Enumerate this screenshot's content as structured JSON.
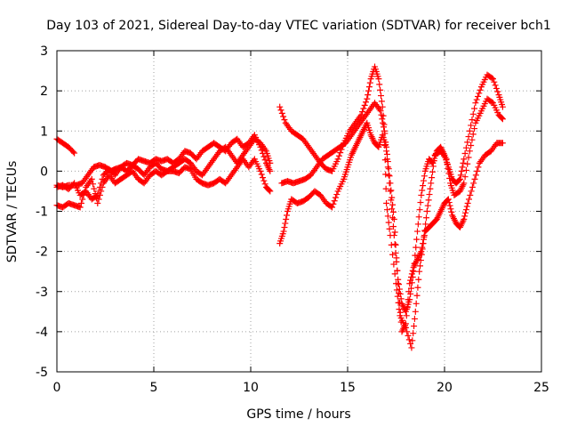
{
  "chart_data": {
    "type": "scatter",
    "title": "Day 103 of 2021, Sidereal Day-to-day VTEC variation (SDTVAR) for receiver bch1",
    "xlabel": "GPS time / hours",
    "ylabel": "SDTVAR / TECUs",
    "xlim": [
      0,
      25
    ],
    "ylim": [
      -5,
      3
    ],
    "xticks": [
      0,
      5,
      10,
      15,
      20,
      25
    ],
    "yticks": [
      -5,
      -4,
      -3,
      -2,
      -1,
      0,
      1,
      2,
      3
    ],
    "grid": true,
    "marker": "+",
    "color": "#ff0000",
    "series": [
      {
        "points": [
          [
            0.0,
            0.8
          ],
          [
            0.3,
            0.7
          ],
          [
            0.6,
            0.6
          ],
          [
            0.9,
            0.45
          ]
        ]
      },
      {
        "points": [
          [
            0.0,
            -0.35
          ],
          [
            0.3,
            -0.4
          ],
          [
            0.6,
            -0.35
          ],
          [
            1.0,
            -0.35
          ],
          [
            1.3,
            -0.3
          ],
          [
            1.6,
            -0.1
          ],
          [
            1.9,
            0.1
          ],
          [
            2.2,
            0.15
          ],
          [
            2.5,
            0.1
          ],
          [
            2.8,
            0.0
          ],
          [
            3.0,
            0.05
          ],
          [
            3.3,
            0.1
          ],
          [
            3.6,
            0.0
          ],
          [
            3.9,
            0.15
          ],
          [
            4.2,
            0.05
          ],
          [
            4.5,
            -0.1
          ],
          [
            4.8,
            0.1
          ],
          [
            5.1,
            0.2
          ],
          [
            5.4,
            0.05
          ],
          [
            5.7,
            0.0
          ],
          [
            6.0,
            0.1
          ],
          [
            6.3,
            0.2
          ],
          [
            6.6,
            0.3
          ],
          [
            6.9,
            0.2
          ],
          [
            7.2,
            0.0
          ],
          [
            7.5,
            -0.1
          ],
          [
            7.8,
            0.1
          ],
          [
            8.1,
            0.3
          ],
          [
            8.4,
            0.5
          ],
          [
            8.7,
            0.6
          ],
          [
            9.0,
            0.4
          ],
          [
            9.3,
            0.2
          ],
          [
            9.6,
            0.4
          ],
          [
            9.9,
            0.6
          ],
          [
            10.2,
            0.8
          ],
          [
            10.5,
            0.7
          ],
          [
            10.8,
            0.5
          ],
          [
            11.0,
            0.2
          ]
        ]
      },
      {
        "points": [
          [
            0.0,
            -0.85
          ],
          [
            0.3,
            -0.9
          ],
          [
            0.6,
            -0.8
          ],
          [
            0.9,
            -0.85
          ],
          [
            1.2,
            -0.9
          ],
          [
            1.5,
            -0.4
          ],
          [
            1.8,
            -0.2
          ],
          [
            2.1,
            -0.8
          ],
          [
            2.4,
            -0.3
          ],
          [
            2.7,
            -0.1
          ],
          [
            3.0,
            -0.3
          ],
          [
            3.3,
            -0.2
          ],
          [
            3.6,
            -0.1
          ],
          [
            3.9,
            0.0
          ],
          [
            4.2,
            -0.2
          ],
          [
            4.5,
            -0.3
          ],
          [
            4.8,
            -0.1
          ],
          [
            5.1,
            0.0
          ],
          [
            5.4,
            -0.1
          ],
          [
            5.7,
            0.0
          ],
          [
            6.0,
            0.0
          ],
          [
            6.3,
            -0.05
          ],
          [
            6.6,
            0.1
          ],
          [
            6.9,
            0.05
          ],
          [
            7.2,
            -0.2
          ],
          [
            7.5,
            -0.3
          ],
          [
            7.8,
            -0.35
          ],
          [
            8.1,
            -0.3
          ],
          [
            8.4,
            -0.2
          ],
          [
            8.7,
            -0.3
          ],
          [
            9.0,
            -0.1
          ],
          [
            9.3,
            0.1
          ],
          [
            9.6,
            0.3
          ],
          [
            9.9,
            0.1
          ],
          [
            10.2,
            0.3
          ],
          [
            10.5,
            0.0
          ],
          [
            10.8,
            -0.4
          ],
          [
            11.0,
            -0.5
          ]
        ]
      },
      {
        "points": [
          [
            0.0,
            -0.4
          ],
          [
            0.3,
            -0.35
          ],
          [
            0.6,
            -0.45
          ],
          [
            0.9,
            -0.3
          ],
          [
            1.2,
            -0.6
          ],
          [
            1.5,
            -0.5
          ],
          [
            1.8,
            -0.7
          ],
          [
            2.1,
            -0.6
          ],
          [
            2.4,
            -0.1
          ],
          [
            2.7,
            0.05
          ],
          [
            3.0,
            -0.1
          ],
          [
            3.3,
            0.1
          ],
          [
            3.6,
            0.2
          ],
          [
            3.9,
            0.15
          ],
          [
            4.2,
            0.3
          ],
          [
            4.5,
            0.25
          ],
          [
            4.8,
            0.2
          ],
          [
            5.1,
            0.3
          ],
          [
            5.4,
            0.25
          ],
          [
            5.7,
            0.3
          ],
          [
            6.0,
            0.2
          ],
          [
            6.3,
            0.3
          ],
          [
            6.6,
            0.5
          ],
          [
            6.9,
            0.45
          ],
          [
            7.2,
            0.3
          ],
          [
            7.5,
            0.5
          ],
          [
            7.8,
            0.6
          ],
          [
            8.1,
            0.7
          ],
          [
            8.4,
            0.6
          ],
          [
            8.7,
            0.5
          ],
          [
            9.0,
            0.7
          ],
          [
            9.3,
            0.8
          ],
          [
            9.6,
            0.6
          ],
          [
            9.9,
            0.7
          ],
          [
            10.2,
            0.9
          ],
          [
            10.5,
            0.6
          ],
          [
            10.8,
            0.2
          ],
          [
            11.0,
            0.0
          ]
        ]
      },
      {
        "points": [
          [
            11.5,
            1.6
          ],
          [
            11.8,
            1.2
          ],
          [
            12.1,
            1.0
          ],
          [
            12.4,
            0.9
          ],
          [
            12.7,
            0.8
          ],
          [
            13.0,
            0.6
          ],
          [
            13.3,
            0.4
          ],
          [
            13.6,
            0.2
          ],
          [
            13.9,
            0.05
          ],
          [
            14.2,
            0.0
          ],
          [
            14.5,
            0.3
          ],
          [
            14.8,
            0.7
          ],
          [
            15.1,
            1.0
          ],
          [
            15.4,
            1.2
          ],
          [
            15.7,
            1.4
          ],
          [
            16.0,
            1.8
          ],
          [
            16.2,
            2.3
          ],
          [
            16.4,
            2.6
          ],
          [
            16.6,
            2.3
          ],
          [
            16.8,
            1.6
          ],
          [
            17.0,
            0.5
          ],
          [
            17.2,
            -0.5
          ],
          [
            17.4,
            -1.6
          ],
          [
            17.6,
            -2.7
          ],
          [
            17.8,
            -3.3
          ],
          [
            18.0,
            -3.5
          ],
          [
            18.2,
            -3.2
          ],
          [
            18.4,
            -2.5
          ],
          [
            18.6,
            -1.5
          ],
          [
            18.8,
            -0.6
          ],
          [
            19.0,
            0.0
          ],
          [
            19.2,
            0.3
          ],
          [
            19.4,
            0.2
          ],
          [
            19.6,
            0.5
          ],
          [
            19.8,
            0.6
          ],
          [
            20.0,
            0.4
          ],
          [
            20.2,
            0.1
          ],
          [
            20.4,
            -0.2
          ],
          [
            20.6,
            -0.3
          ],
          [
            20.8,
            -0.2
          ],
          [
            21.0,
            0.3
          ],
          [
            21.3,
            1.0
          ],
          [
            21.6,
            1.7
          ],
          [
            21.9,
            2.1
          ],
          [
            22.2,
            2.4
          ],
          [
            22.5,
            2.3
          ],
          [
            22.8,
            1.9
          ],
          [
            23.0,
            1.6
          ]
        ]
      },
      {
        "points": [
          [
            11.5,
            -1.8
          ],
          [
            11.7,
            -1.5
          ],
          [
            11.9,
            -1.0
          ],
          [
            12.1,
            -0.7
          ],
          [
            12.4,
            -0.8
          ],
          [
            12.7,
            -0.75
          ],
          [
            13.0,
            -0.65
          ],
          [
            13.3,
            -0.5
          ],
          [
            13.6,
            -0.6
          ],
          [
            13.9,
            -0.8
          ],
          [
            14.2,
            -0.9
          ],
          [
            14.5,
            -0.5
          ],
          [
            14.8,
            -0.2
          ],
          [
            15.0,
            0.1
          ],
          [
            15.2,
            0.4
          ],
          [
            15.4,
            0.6
          ],
          [
            15.6,
            0.8
          ],
          [
            15.8,
            1.0
          ],
          [
            16.0,
            1.2
          ],
          [
            16.2,
            0.9
          ],
          [
            16.4,
            0.7
          ],
          [
            16.6,
            0.6
          ],
          [
            16.8,
            0.9
          ],
          [
            17.0,
            0.6
          ],
          [
            17.2,
            -0.3
          ],
          [
            17.4,
            -1.2
          ],
          [
            17.6,
            -2.8
          ],
          [
            17.8,
            -4.0
          ],
          [
            18.0,
            -3.8
          ],
          [
            18.2,
            -2.8
          ],
          [
            18.4,
            -2.4
          ],
          [
            18.6,
            -2.2
          ],
          [
            18.8,
            -2.0
          ],
          [
            19.0,
            -1.5
          ],
          [
            19.2,
            -1.4
          ],
          [
            19.4,
            -1.3
          ],
          [
            19.6,
            -1.2
          ],
          [
            19.8,
            -1.0
          ],
          [
            20.0,
            -0.8
          ],
          [
            20.2,
            -0.7
          ],
          [
            20.4,
            -1.1
          ],
          [
            20.6,
            -1.3
          ],
          [
            20.8,
            -1.4
          ],
          [
            21.0,
            -1.2
          ],
          [
            21.2,
            -0.8
          ],
          [
            21.5,
            -0.3
          ],
          [
            21.8,
            0.2
          ],
          [
            22.1,
            0.4
          ],
          [
            22.4,
            0.5
          ],
          [
            22.7,
            0.7
          ],
          [
            23.0,
            0.7
          ]
        ]
      },
      {
        "points": [
          [
            11.6,
            -0.3
          ],
          [
            11.9,
            -0.25
          ],
          [
            12.2,
            -0.3
          ],
          [
            12.5,
            -0.25
          ],
          [
            12.8,
            -0.2
          ],
          [
            13.1,
            -0.1
          ],
          [
            13.4,
            0.1
          ],
          [
            13.7,
            0.3
          ],
          [
            14.0,
            0.4
          ],
          [
            14.3,
            0.5
          ],
          [
            14.6,
            0.6
          ],
          [
            14.9,
            0.7
          ],
          [
            15.2,
            0.9
          ],
          [
            15.5,
            1.1
          ],
          [
            15.8,
            1.3
          ],
          [
            16.1,
            1.5
          ],
          [
            16.4,
            1.7
          ],
          [
            16.7,
            1.5
          ],
          [
            16.9,
            1.0
          ],
          [
            17.0,
            -0.8
          ],
          [
            17.2,
            -1.6
          ],
          [
            17.5,
            -2.8
          ],
          [
            17.7,
            -3.6
          ],
          [
            18.0,
            -3.9
          ],
          [
            18.3,
            -4.4
          ],
          [
            18.5,
            -3.5
          ],
          [
            18.7,
            -2.5
          ],
          [
            18.9,
            -1.8
          ],
          [
            19.1,
            -1.0
          ],
          [
            19.3,
            -0.3
          ],
          [
            19.5,
            0.4
          ],
          [
            19.8,
            0.5
          ],
          [
            20.1,
            0.3
          ],
          [
            20.3,
            -0.3
          ],
          [
            20.5,
            -0.6
          ],
          [
            20.8,
            -0.5
          ],
          [
            21.0,
            -0.3
          ],
          [
            21.3,
            0.5
          ],
          [
            21.6,
            1.2
          ],
          [
            21.9,
            1.5
          ],
          [
            22.2,
            1.8
          ],
          [
            22.5,
            1.7
          ],
          [
            22.8,
            1.4
          ],
          [
            23.0,
            1.3
          ]
        ]
      }
    ]
  }
}
